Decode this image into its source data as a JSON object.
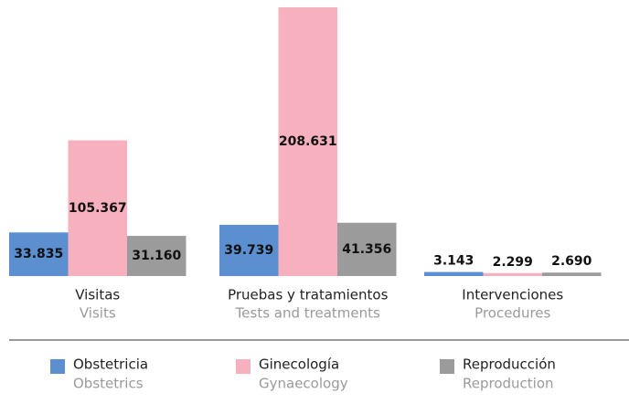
{
  "chart_data": {
    "type": "bar",
    "categories": [
      "Visitas",
      "Pruebas y tratamientos",
      "Intervenciones"
    ],
    "category_subtitles": [
      "Visits",
      "Tests and treatments",
      "Procedures"
    ],
    "series": [
      {
        "name": "Obstetricia",
        "subtitle": "Obstetrics",
        "color": "#5b8fd0",
        "values": [
          33835,
          39739,
          3143
        ],
        "value_labels": [
          "33.835",
          "39.739",
          "3.143"
        ]
      },
      {
        "name": "Ginecología",
        "subtitle": "Gynaecology",
        "color": "#f7b0bd",
        "values": [
          105367,
          208631,
          2299
        ],
        "value_labels": [
          "105.367",
          "208.631",
          "2.299"
        ]
      },
      {
        "name": "Reproducción",
        "subtitle": "Reproduction",
        "color": "#9b9b9b",
        "values": [
          31160,
          41356,
          2690
        ],
        "value_labels": [
          "31.160",
          "41.356",
          "2.690"
        ]
      }
    ]
  }
}
